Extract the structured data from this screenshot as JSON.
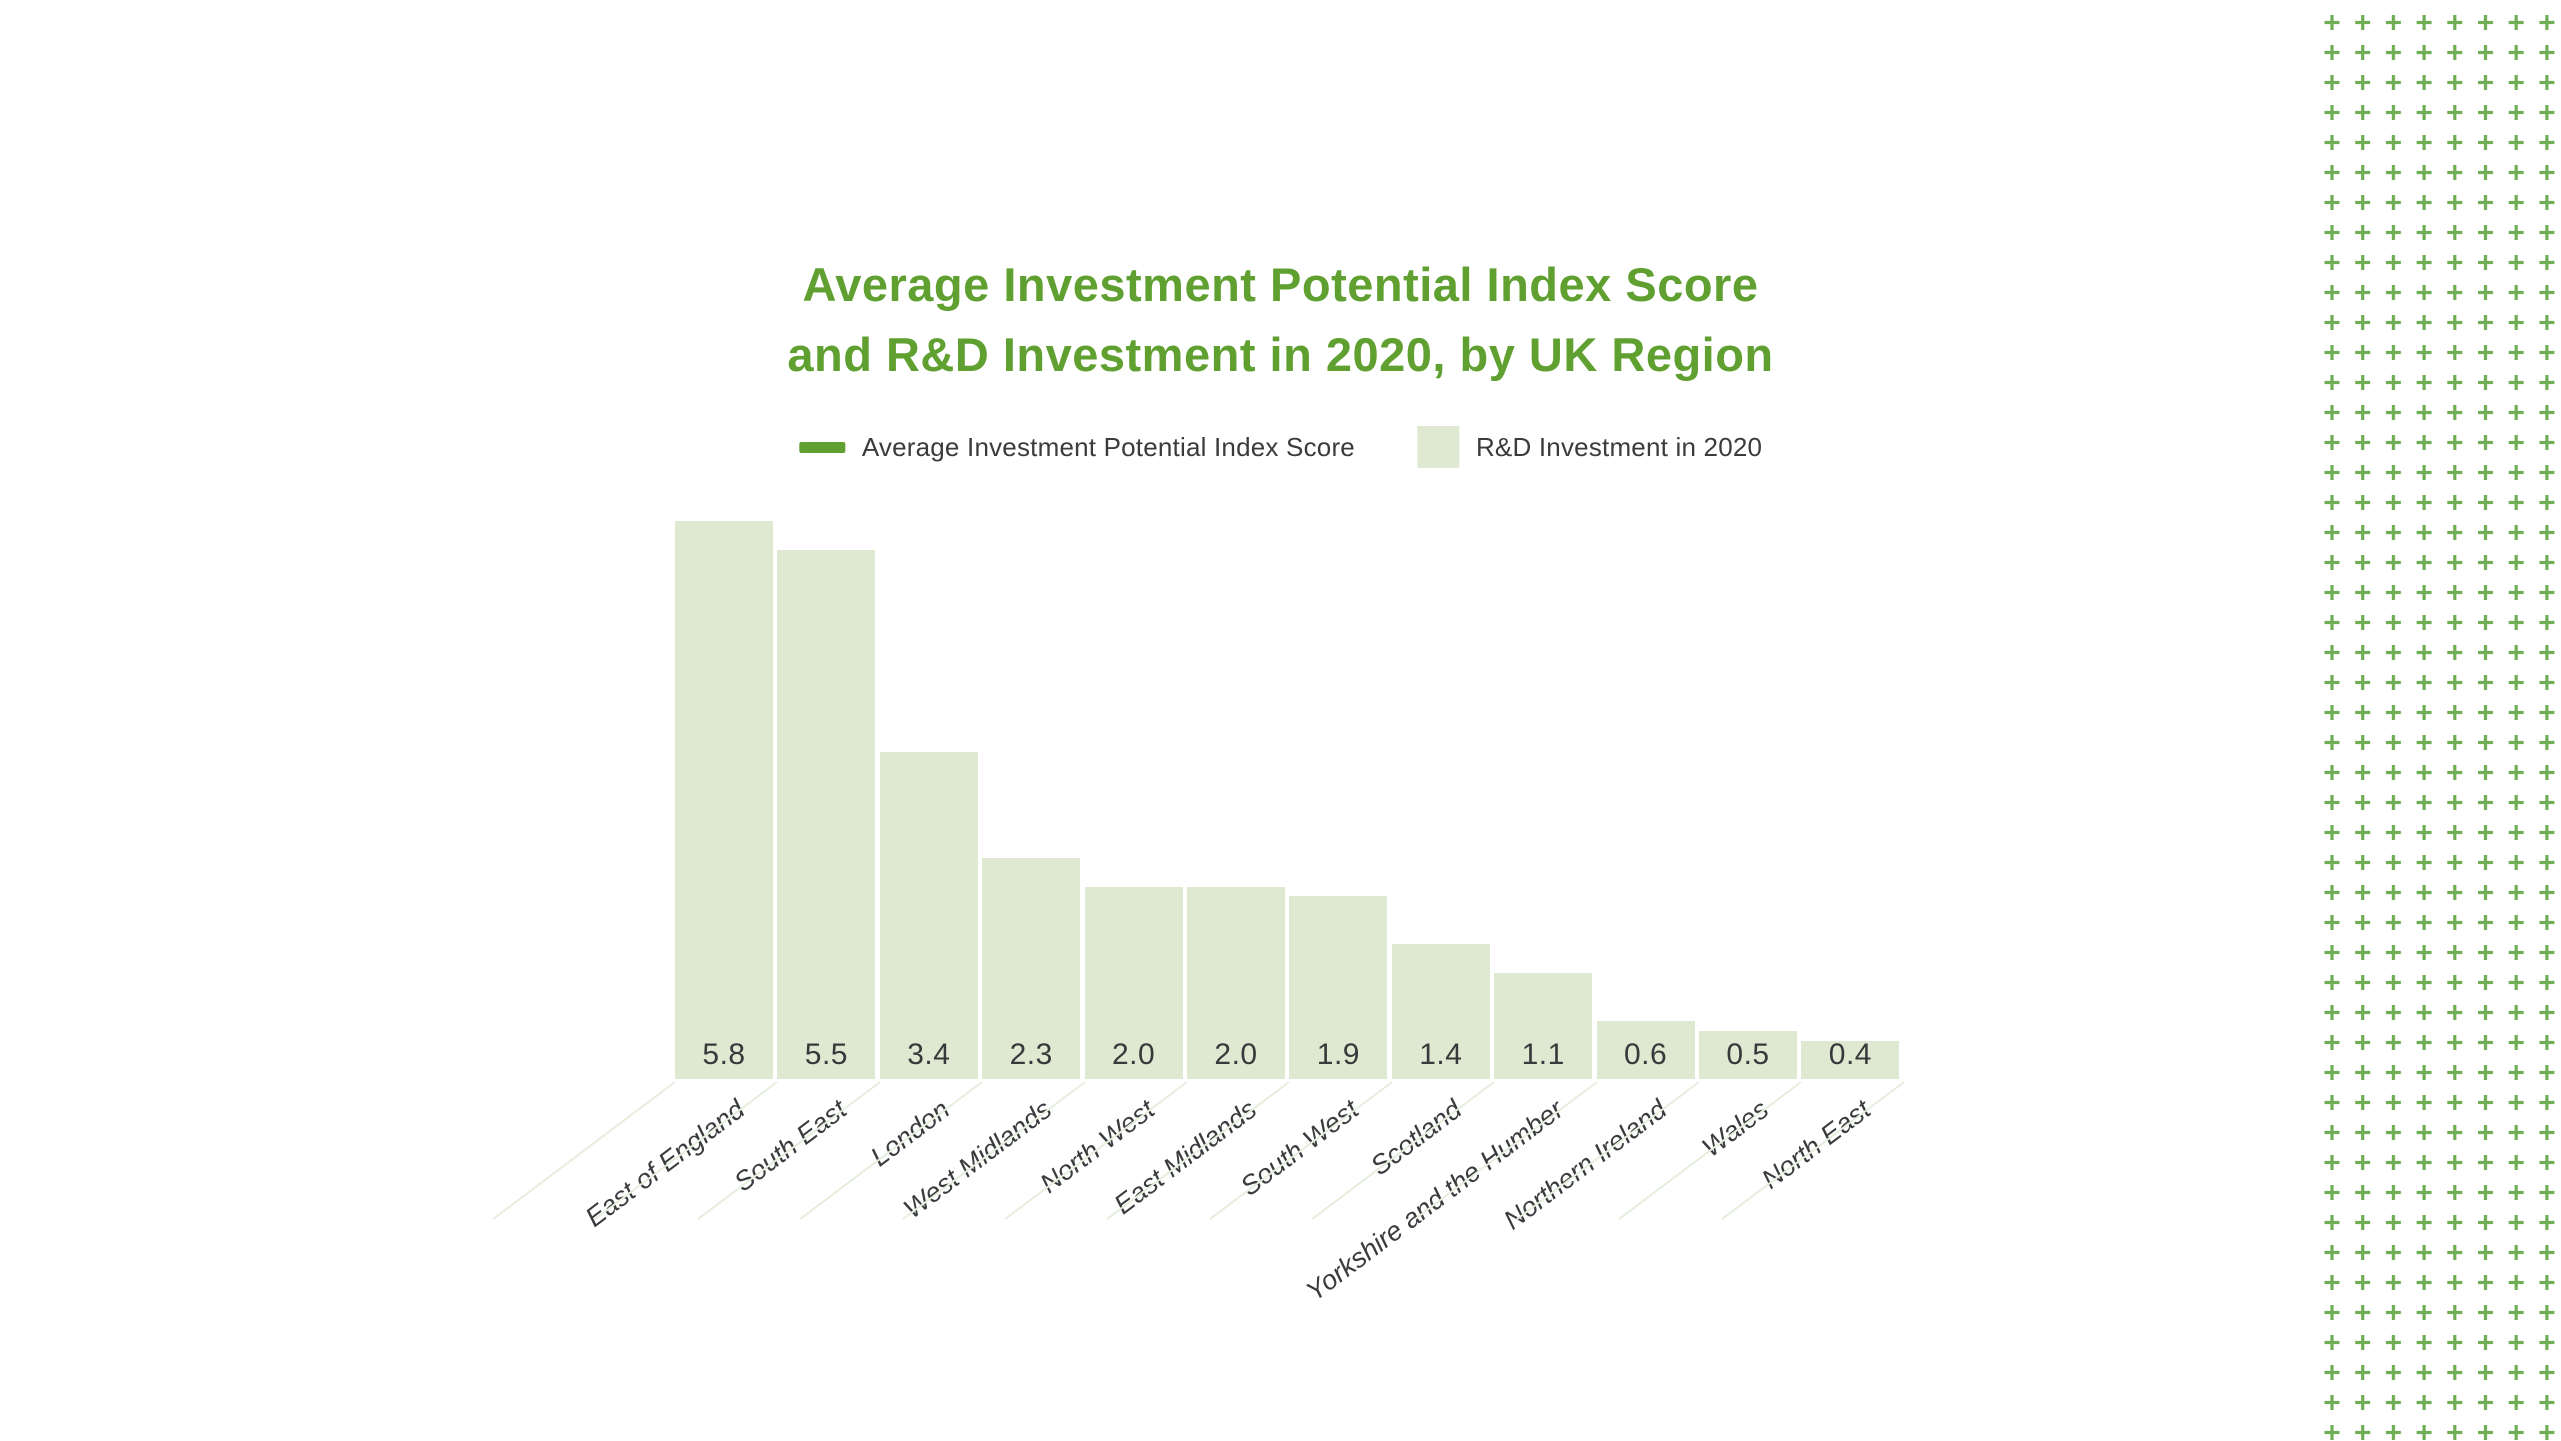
{
  "title": {
    "line1": "Average Investment Potential Index Score",
    "line2": "and R&D Investment in 2020, by UK Region"
  },
  "legend": [
    {
      "label": "Average Investment Potential Index Score",
      "swatch": "line-swatch"
    },
    {
      "label": "R&D Investment in 2020",
      "swatch": "square-swatch"
    }
  ],
  "chart_data": {
    "type": "bar",
    "title": "Average Investment Potential Index Score and R&D Investment in 2020, by UK Region",
    "categories": [
      "East of England",
      "South East",
      "London",
      "West Midlands",
      "North West",
      "East Midlands",
      "South West",
      "Scotland",
      "Yorkshire and the Humber",
      "Northern Ireland",
      "Wales",
      "North East"
    ],
    "series": [
      {
        "name": "Average Investment Potential Index Score",
        "type": "line"
      },
      {
        "name": "R&D Investment in 2020",
        "type": "bar",
        "values": [
          5.8,
          5.5,
          3.4,
          2.3,
          2.0,
          2.0,
          1.9,
          1.4,
          1.1,
          0.6,
          0.5,
          0.4
        ]
      }
    ],
    "value_labels": [
      "5.8",
      "5.5",
      "3.4",
      "2.3",
      "2.0",
      "2.0",
      "1.9",
      "1.4",
      "1.1",
      "0.6",
      "0.5",
      "0.4"
    ],
    "xlabel": "",
    "ylabel": "",
    "ylim": [
      0,
      6
    ],
    "grid": false,
    "legend_position": "top",
    "data_labels": "inside-bottom"
  },
  "colors": {
    "title_green": "#5fa030",
    "legend_line_green": "#5fa030",
    "bar_fill": "#dfe9d2",
    "tick_line": "#e6eedd",
    "plus_green": "#6fae54",
    "text_dark": "#3a3b3d",
    "value_text": "#38393b"
  },
  "decor": {
    "plus_pattern": "grid of plus glyphs, right edge of page"
  }
}
